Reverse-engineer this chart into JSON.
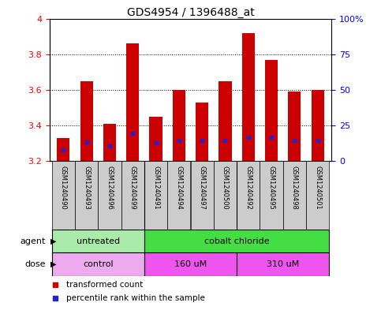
{
  "title": "GDS4954 / 1396488_at",
  "samples": [
    "GSM1240490",
    "GSM1240493",
    "GSM1240496",
    "GSM1240499",
    "GSM1240491",
    "GSM1240494",
    "GSM1240497",
    "GSM1240500",
    "GSM1240492",
    "GSM1240495",
    "GSM1240498",
    "GSM1240501"
  ],
  "bar_bottoms": [
    3.2,
    3.2,
    3.2,
    3.2,
    3.2,
    3.2,
    3.2,
    3.2,
    3.2,
    3.2,
    3.2,
    3.2
  ],
  "bar_tops": [
    3.33,
    3.65,
    3.41,
    3.86,
    3.45,
    3.6,
    3.53,
    3.65,
    3.92,
    3.77,
    3.59,
    3.6
  ],
  "blue_marks": [
    3.265,
    3.31,
    3.285,
    3.355,
    3.305,
    3.315,
    3.315,
    3.315,
    3.335,
    3.335,
    3.315,
    3.315
  ],
  "ylim_left": [
    3.2,
    4.0
  ],
  "ylim_right": [
    0,
    100
  ],
  "yticks_left": [
    3.2,
    3.4,
    3.6,
    3.8,
    4.0
  ],
  "ytick_labels_left": [
    "3.2",
    "3.4",
    "3.6",
    "3.8",
    "4"
  ],
  "yticks_right": [
    0,
    25,
    50,
    75,
    100
  ],
  "ytick_labels_right": [
    "0",
    "25",
    "50",
    "75",
    "100%"
  ],
  "bar_color": "#cc0000",
  "blue_color": "#2222cc",
  "agent_groups": [
    {
      "label": "untreated",
      "start": 0,
      "end": 4,
      "color": "#aaeaaa"
    },
    {
      "label": "cobalt chloride",
      "start": 4,
      "end": 12,
      "color": "#44dd44"
    }
  ],
  "dose_groups": [
    {
      "label": "control",
      "start": 0,
      "end": 4,
      "color": "#eeaaee"
    },
    {
      "label": "160 uM",
      "start": 4,
      "end": 8,
      "color": "#ee55ee"
    },
    {
      "label": "310 uM",
      "start": 8,
      "end": 12,
      "color": "#ee55ee"
    }
  ],
  "group_separators_agent": [
    4
  ],
  "group_separators_dose": [
    4,
    8
  ],
  "legend_items": [
    {
      "label": "transformed count",
      "color": "#cc0000"
    },
    {
      "label": "percentile rank within the sample",
      "color": "#2222cc"
    }
  ],
  "grid_values": [
    3.4,
    3.6,
    3.8
  ],
  "sample_box_color": "#cccccc",
  "tick_fontsize": 8,
  "sample_fontsize": 6,
  "label_fontsize": 8,
  "title_fontsize": 10
}
